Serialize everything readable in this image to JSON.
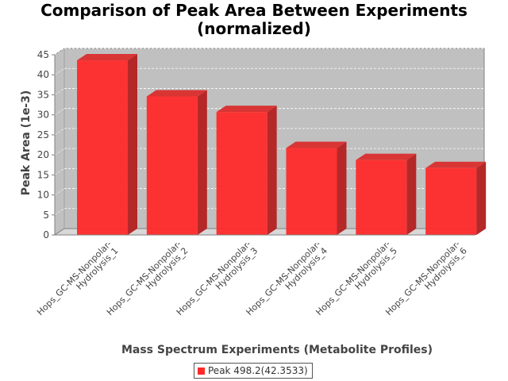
{
  "title_lines": [
    "Comparison of Peak Area Between Experiments",
    "(normalized)"
  ],
  "chart_data": {
    "type": "bar",
    "title": "Comparison of Peak Area Between Experiments (normalized)",
    "xlabel": "Mass Spectrum Experiments (Metabolite Profiles)",
    "ylabel": "Peak Area (1e-3)",
    "ylim": [
      0,
      45
    ],
    "yticks": [
      0,
      5,
      10,
      15,
      20,
      25,
      30,
      35,
      40,
      45
    ],
    "categories": [
      [
        "Hops_GC-MS-Nonpolar-",
        "Hydrolysis_1"
      ],
      [
        "Hops_GC-MS-Nonpolar-",
        "Hydrolysis_2"
      ],
      [
        "Hops_GC-MS-Nonpolar-",
        "Hydrolysis_3"
      ],
      [
        "Hops_GC-MS-Nonpolar-",
        "Hydrolysis_4"
      ],
      [
        "Hops_GC-MS-Nonpolar-",
        "Hydrolysis_5"
      ],
      [
        "Hops_GC-MS-Nonpolar-",
        "Hydrolysis_6"
      ]
    ],
    "series": [
      {
        "name": "Peak 498.2(42.3533)",
        "values": [
          43.6,
          34.6,
          30.7,
          21.7,
          18.7,
          16.7
        ],
        "color": "#ff2a2a"
      }
    ],
    "plot_background": "#c0c0c0",
    "grid": true,
    "legend": "bottom-center"
  }
}
